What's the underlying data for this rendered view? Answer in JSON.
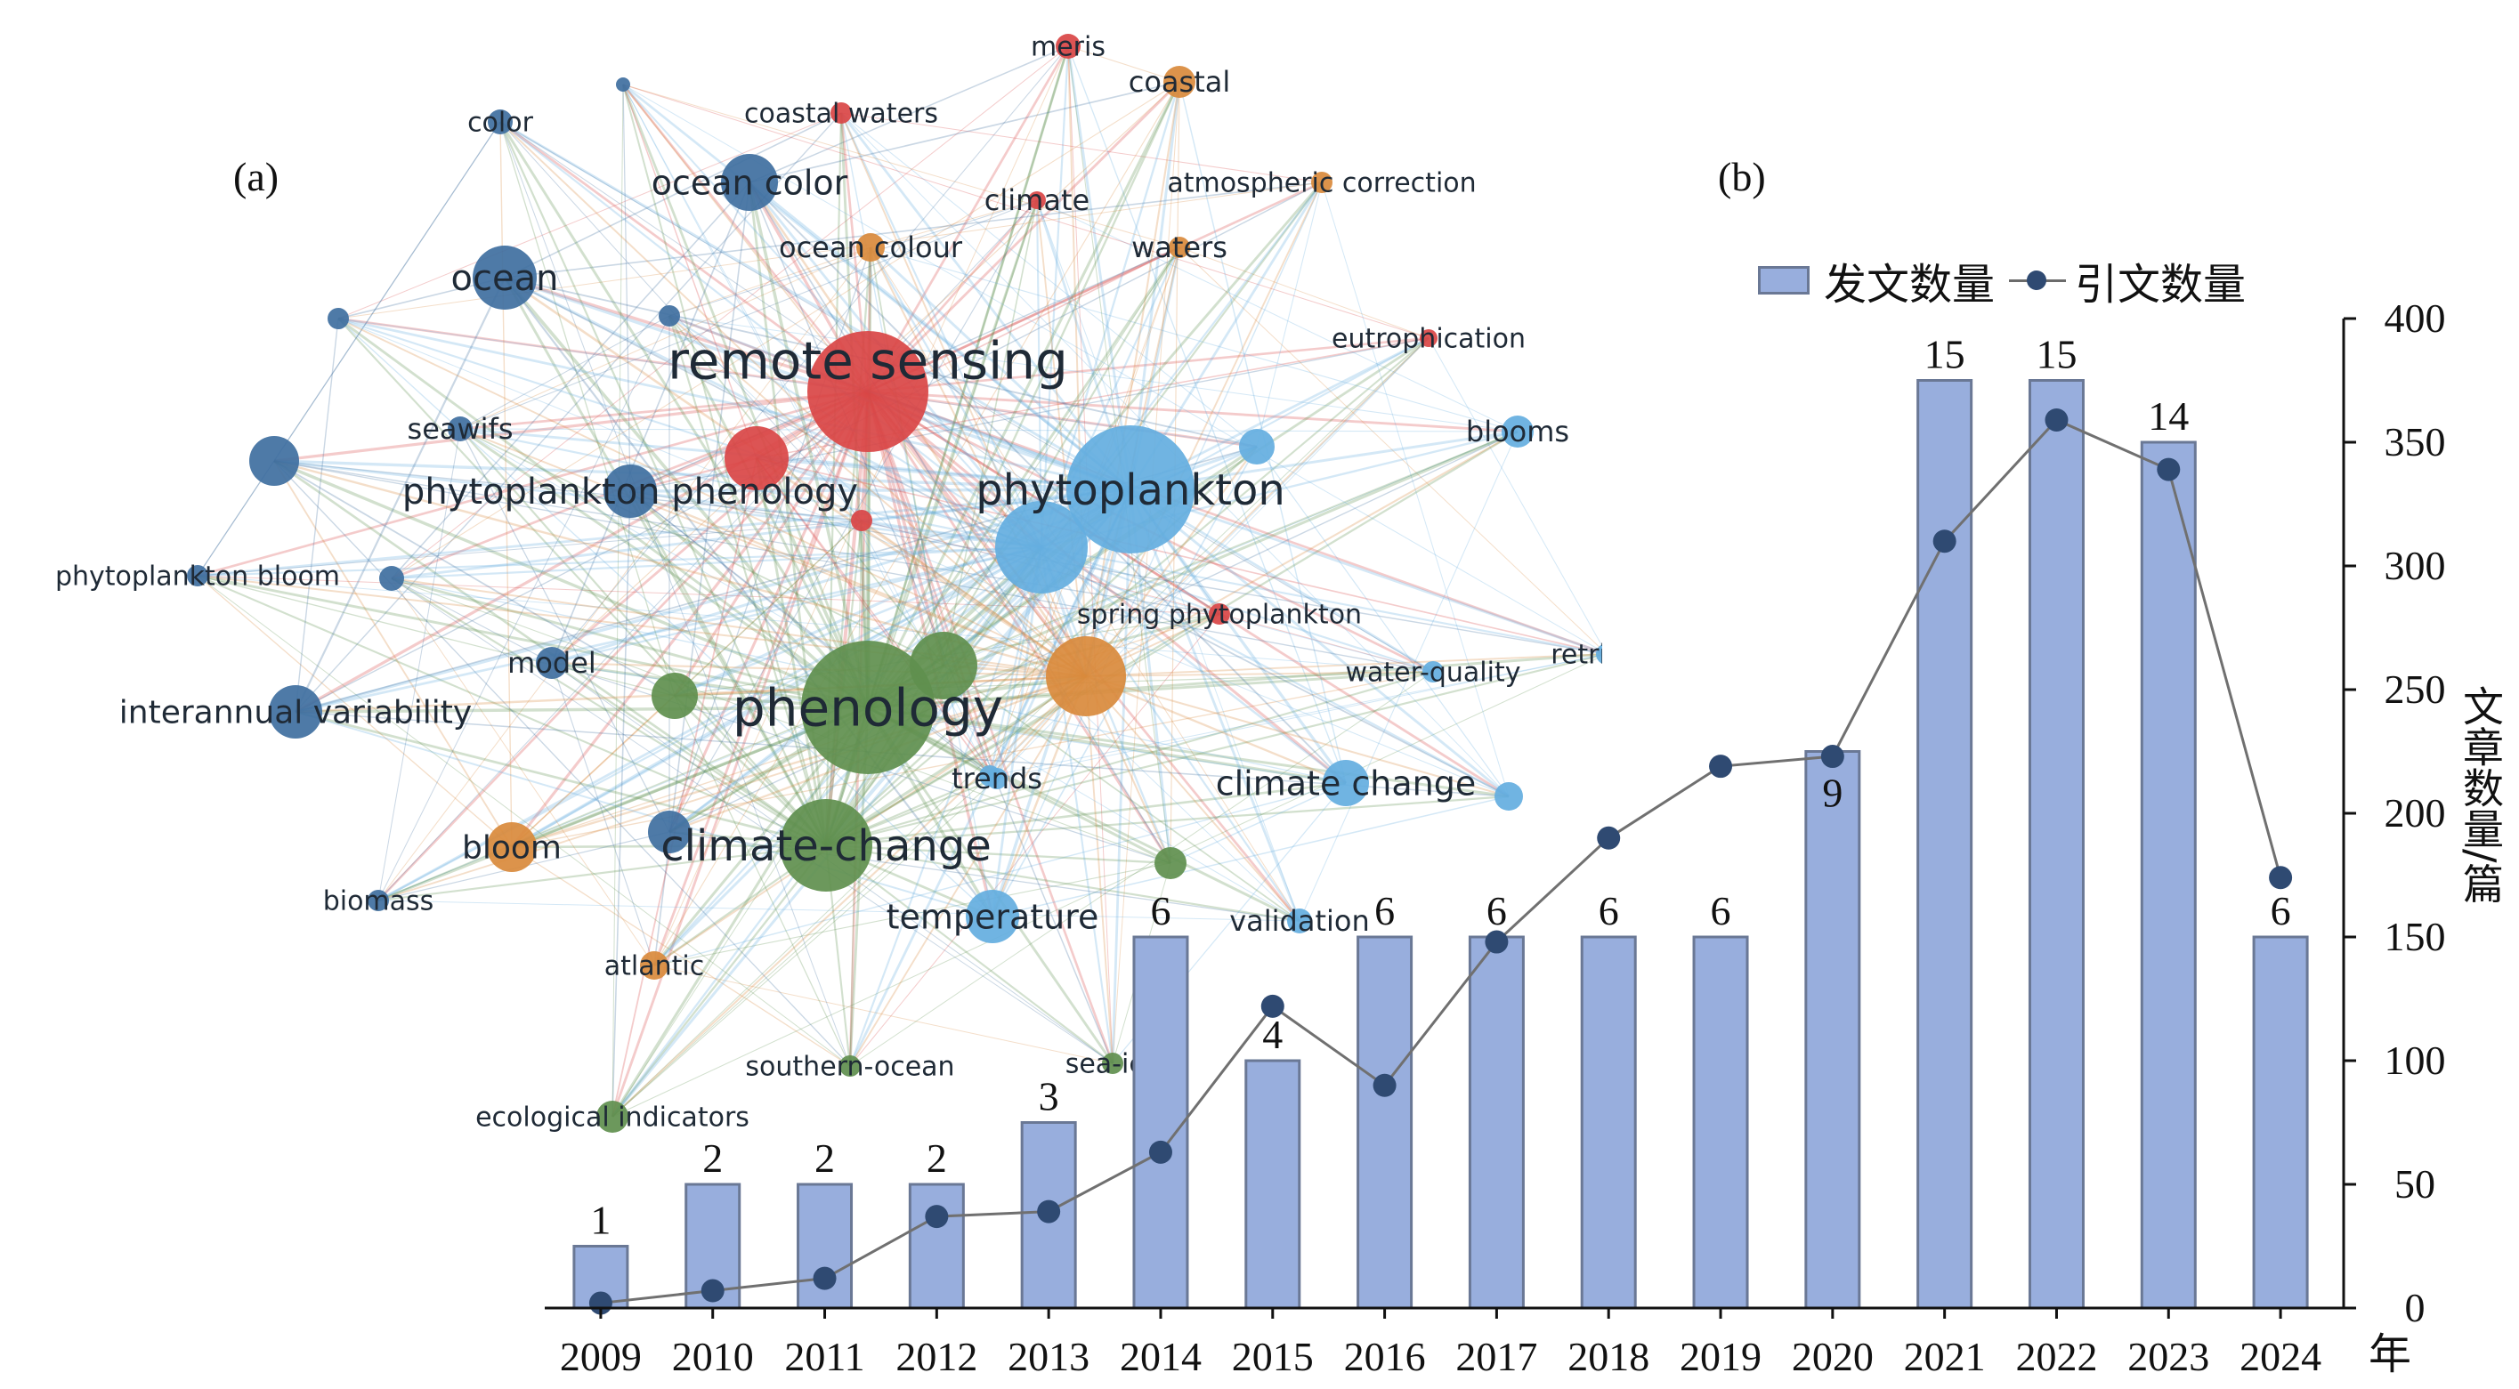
{
  "panel_a_label": "(a)",
  "panel_b_label": "(b)",
  "network": {
    "colors": {
      "red": "#d94545",
      "orange": "#d98a3c",
      "green": "#5f8f4e",
      "lightblue": "#64aee0",
      "darkblue": "#3f6f9f"
    },
    "keywords": [
      {
        "id": "remote_sensing",
        "label": "remote sensing",
        "cluster": "red"
      },
      {
        "id": "meris",
        "label": "meris",
        "cluster": "red"
      },
      {
        "id": "coastal_waters",
        "label": "coastal waters",
        "cluster": "red"
      },
      {
        "id": "climate",
        "label": "climate",
        "cluster": "red"
      },
      {
        "id": "eutrophication",
        "label": "eutrophication",
        "cluster": "red"
      },
      {
        "id": "spring_phytoplankton",
        "label": "spring phytoplankton",
        "cluster": "red"
      },
      {
        "id": "coastal",
        "label": "coastal",
        "cluster": "orange"
      },
      {
        "id": "atmospheric_correction",
        "label": "atmospheric correction",
        "cluster": "orange"
      },
      {
        "id": "ocean_colour",
        "label": "ocean colour",
        "cluster": "orange"
      },
      {
        "id": "waters",
        "label": "waters",
        "cluster": "orange"
      },
      {
        "id": "bloom",
        "label": "bloom",
        "cluster": "orange"
      },
      {
        "id": "atlantic",
        "label": "atlantic",
        "cluster": "orange"
      },
      {
        "id": "phenology",
        "label": "phenology",
        "cluster": "green"
      },
      {
        "id": "climate_change_h",
        "label": "climate-change",
        "cluster": "green"
      },
      {
        "id": "ecological_indicators",
        "label": "ecological indicators",
        "cluster": "green"
      },
      {
        "id": "southern_ocean",
        "label": "southern-ocean",
        "cluster": "green"
      },
      {
        "id": "sea_ice",
        "label": "sea-ice",
        "cluster": "green"
      },
      {
        "id": "phytoplankton",
        "label": "phytoplankton",
        "cluster": "lightblue"
      },
      {
        "id": "blooms",
        "label": "blooms",
        "cluster": "lightblue"
      },
      {
        "id": "retrieval",
        "label": "retrieval",
        "cluster": "lightblue"
      },
      {
        "id": "water_quality",
        "label": "water-quality",
        "cluster": "lightblue"
      },
      {
        "id": "climate_change",
        "label": "climate change",
        "cluster": "lightblue"
      },
      {
        "id": "temperature",
        "label": "temperature",
        "cluster": "lightblue"
      },
      {
        "id": "validation",
        "label": "validation",
        "cluster": "lightblue"
      },
      {
        "id": "trends",
        "label": "trends",
        "cluster": "lightblue"
      },
      {
        "id": "color",
        "label": "color",
        "cluster": "darkblue"
      },
      {
        "id": "ocean_color",
        "label": "ocean color",
        "cluster": "darkblue"
      },
      {
        "id": "ocean",
        "label": "ocean",
        "cluster": "darkblue"
      },
      {
        "id": "seawifs",
        "label": "seawifs",
        "cluster": "darkblue"
      },
      {
        "id": "phytoplankton_phenology",
        "label": "phytoplankton phenology",
        "cluster": "darkblue"
      },
      {
        "id": "phytoplankton_bloom",
        "label": "phytoplankton bloom",
        "cluster": "darkblue"
      },
      {
        "id": "model",
        "label": "model",
        "cluster": "darkblue"
      },
      {
        "id": "interannual_variability",
        "label": "interannual variability",
        "cluster": "darkblue"
      },
      {
        "id": "biomass",
        "label": "biomass",
        "cluster": "darkblue"
      }
    ]
  },
  "chart_data": {
    "type": "bar",
    "categories": [
      "2009",
      "2010",
      "2011",
      "2012",
      "2013",
      "2014",
      "2015",
      "2016",
      "2017",
      "2018",
      "2019",
      "2020",
      "2021",
      "2022",
      "2023",
      "2024"
    ],
    "series": [
      {
        "name": "发文数量",
        "kind": "bar",
        "values": [
          1,
          2,
          2,
          2,
          3,
          6,
          4,
          6,
          6,
          6,
          6,
          9,
          15,
          15,
          14,
          6
        ],
        "labels": [
          "1",
          "2",
          "2",
          "2",
          "3",
          "6",
          "4",
          "6",
          "6",
          "6",
          "6",
          "9",
          "15",
          "15",
          "14",
          "6"
        ]
      },
      {
        "name": "引文数量",
        "kind": "line",
        "values": [
          2,
          7,
          12,
          37,
          39,
          63,
          122,
          90,
          148,
          190,
          219,
          223,
          310,
          359,
          339,
          174
        ]
      }
    ],
    "bar_scale": 25,
    "ylabel": "文章数量/篇",
    "xlabel": "年",
    "ylim": [
      0,
      400
    ],
    "yticks": [
      "0",
      "50",
      "100",
      "150",
      "200",
      "250",
      "300",
      "350",
      "400"
    ],
    "y_axis_position": "right",
    "legend_position": "top-right",
    "colors": {
      "bar": "#98aedd",
      "bar_edge": "#6a7895",
      "line": "#707070",
      "marker": "#2f4a72"
    }
  }
}
